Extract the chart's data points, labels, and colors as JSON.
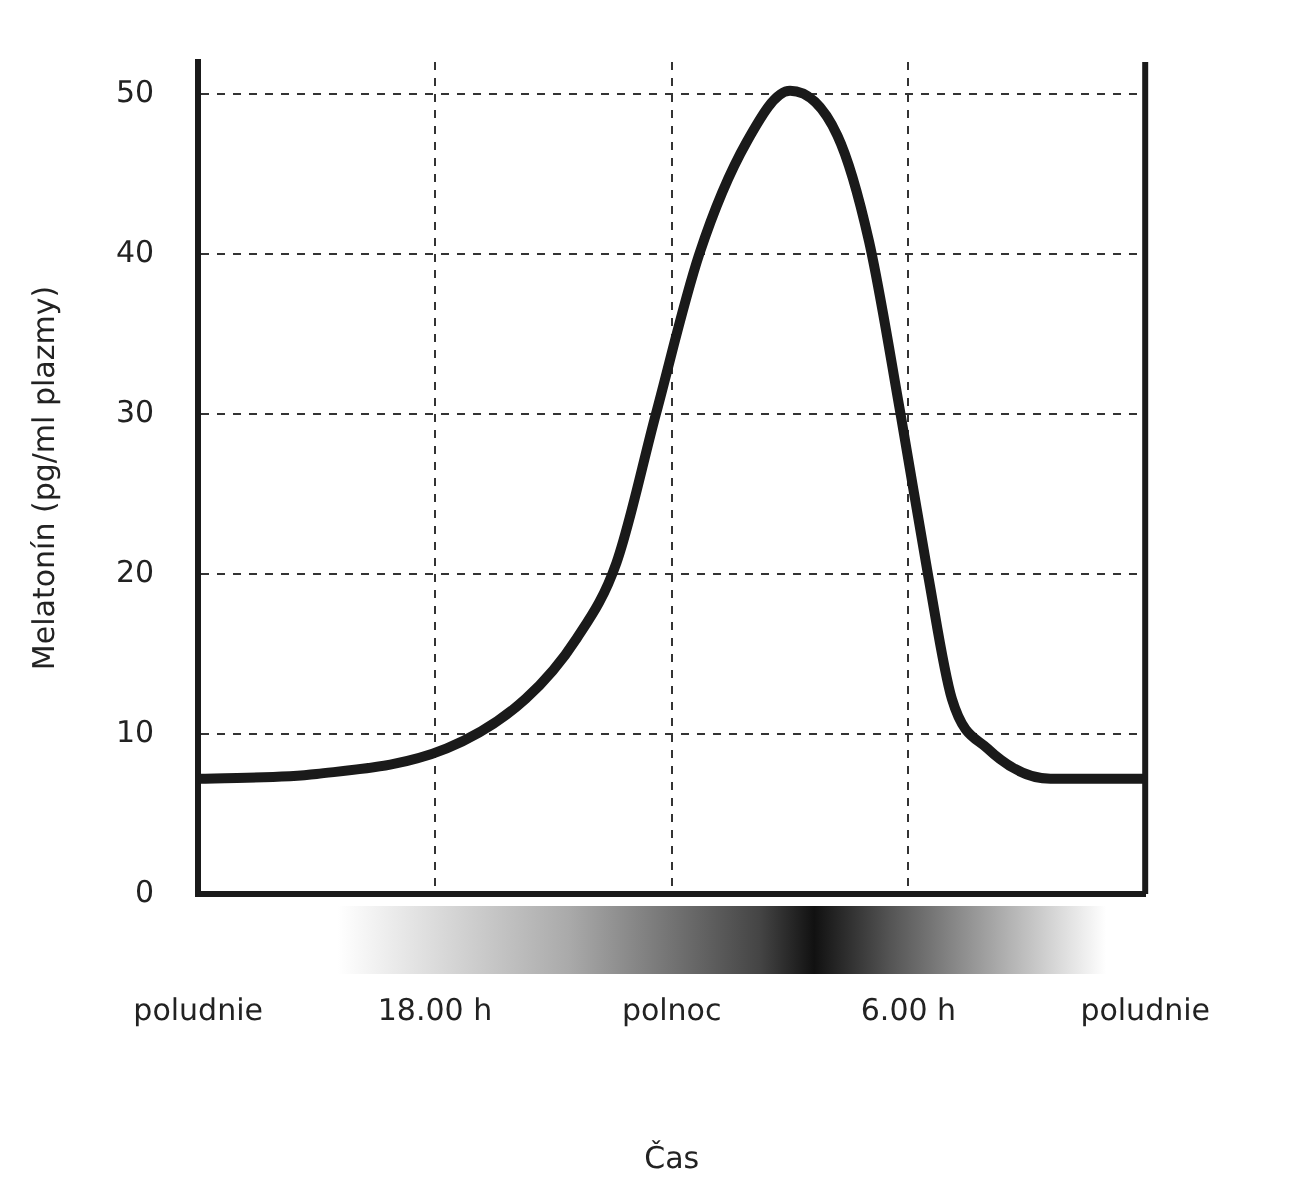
{
  "chart_data": {
    "type": "line",
    "xlabel": "Čas",
    "ylabel": "Melatonín (pg/ml plazmy)",
    "x": [
      "2000-01-01T12:00",
      "2000-01-01T15:00",
      "2000-01-01T18:18",
      "2000-01-01T20:18",
      "2000-01-01T21:36",
      "2000-01-01T22:36",
      "2000-01-01T23:36",
      "2000-01-02T00:42",
      "2000-01-02T01:54",
      "2000-01-02T03:00",
      "2000-01-02T04:12",
      "2000-01-02T05:00",
      "2000-01-02T05:48",
      "2000-01-02T06:30",
      "2000-01-02T07:06",
      "2000-01-02T08:00",
      "2000-01-02T09:36",
      "2000-01-02T12:00"
    ],
    "series": [
      {
        "color": "#1a1a1a",
        "values": [
          7.2,
          7.5,
          9.1,
          12.2,
          16,
          20.7,
          30,
          40,
          47,
          50.2,
          47.4,
          40.8,
          30,
          19.9,
          12.2,
          9.1,
          7.2,
          7.2
        ]
      }
    ],
    "xlim": [
      "2000-01-01T12:00",
      "2000-01-02T12:00"
    ],
    "xticks": [
      {
        "value": "2000-01-01T12:00",
        "label": "poludnie"
      },
      {
        "value": "2000-01-01T18:00",
        "label": "18.00 h"
      },
      {
        "value": "2000-01-02T00:00",
        "label": "polnoc"
      },
      {
        "value": "2000-01-02T06:00",
        "label": "6.00 h"
      },
      {
        "value": "2000-01-02T12:00",
        "label": "poludnie"
      }
    ],
    "ylim": [
      0,
      52
    ],
    "yticks": [
      0,
      10,
      20,
      30,
      40,
      50
    ],
    "grid": true,
    "legend": false,
    "marker": "none",
    "line_style": "solid"
  }
}
